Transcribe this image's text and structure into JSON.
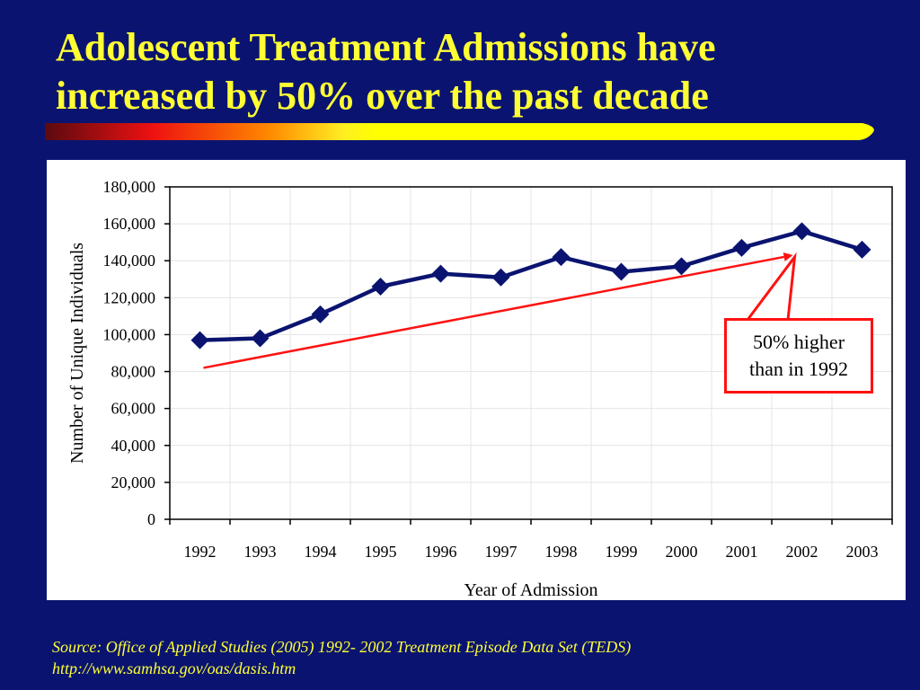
{
  "title": {
    "line1": "Adolescent Treatment Admissions have",
    "line2": "increased by 50% over the past decade"
  },
  "colors": {
    "background": "#0a1470",
    "title": "#ffff33",
    "series": "#0a1470",
    "trend": "#ff1111",
    "callout_border": "#ff1111"
  },
  "callout": {
    "line1": "50% higher",
    "line2": "than in 1992"
  },
  "source": {
    "line1": "Source:  Office of Applied Studies (2005) 1992- 2002 Treatment Episode Data Set (TEDS)",
    "line2": "http://www.samhsa.gov/oas/dasis.htm"
  },
  "chart_data": {
    "type": "line",
    "categories": [
      "1992",
      "1993",
      "1994",
      "1995",
      "1996",
      "1997",
      "1998",
      "1999",
      "2000",
      "2001",
      "2002",
      "2003"
    ],
    "series": [
      {
        "values": [
          97000,
          98000,
          111000,
          126000,
          133000,
          131000,
          142000,
          134000,
          137000,
          147000,
          156000,
          146000
        ]
      }
    ],
    "trend_line": {
      "from": [
        "1992",
        82000
      ],
      "to": [
        "2002",
        143000
      ]
    },
    "xlabel": "Year of Admission",
    "ylabel": "Number of Unique Individuals",
    "ylim": [
      0,
      180000
    ],
    "yticks": [
      0,
      20000,
      40000,
      60000,
      80000,
      100000,
      120000,
      140000,
      160000,
      180000
    ],
    "ytick_labels": [
      "0",
      "20,000",
      "40,000",
      "60,000",
      "80,000",
      "100,000",
      "120,000",
      "140,000",
      "160,000",
      "180,000"
    ],
    "grid": true,
    "legend": "none"
  }
}
